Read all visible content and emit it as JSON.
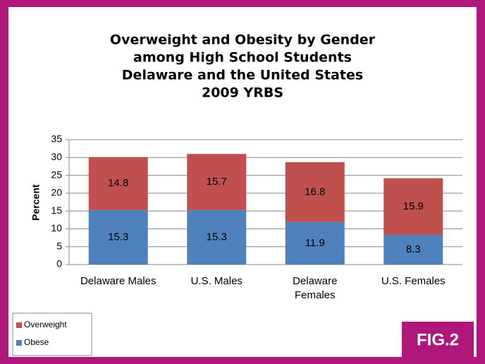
{
  "chart_data": {
    "type": "stacked_bar",
    "title": [
      "Overweight and Obesity by Gender",
      "among High School Students",
      "Delaware and the United States",
      "2009 YRBS"
    ],
    "y_label": "Percent",
    "categories": [
      "Delaware Males",
      "U.S. Males",
      "Delaware Females",
      "U.S. Females"
    ],
    "series": [
      {
        "name": "Obese",
        "color": "#4f81bd",
        "values": [
          15.3,
          15.3,
          11.9,
          8.3
        ]
      },
      {
        "name": "Overweight",
        "color": "#c0504d",
        "values": [
          14.8,
          15.7,
          16.8,
          15.9
        ]
      }
    ],
    "ylim": [
      0,
      35
    ],
    "yticks": [
      0,
      5,
      10,
      15,
      20,
      25,
      30,
      35
    ],
    "grid": true,
    "legend": "bottom-left",
    "badge": "FIG.2"
  }
}
